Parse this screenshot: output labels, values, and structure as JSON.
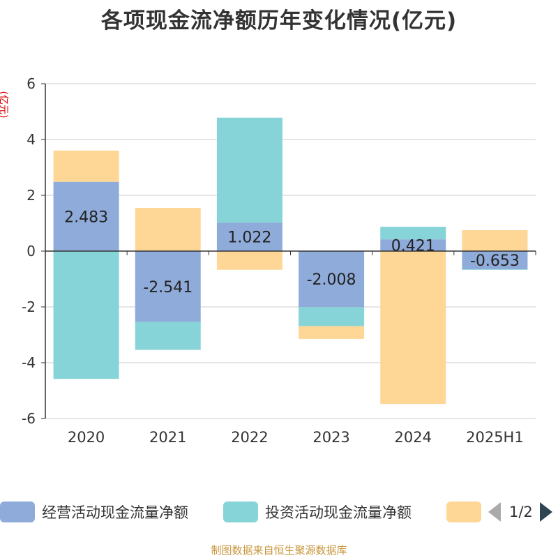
{
  "title": "各项现金流净额历年变化情况(亿元)",
  "y_unit": "(亿元)",
  "colors": {
    "operating": "#8fabda",
    "investing": "#87d4d8",
    "financing": "#fed797",
    "axis": "#333333",
    "grid": "#cccccc"
  },
  "legend": {
    "items": [
      {
        "label": "经营活动现金流量净额"
      },
      {
        "label": "投资活动现金流量净额"
      },
      {
        "label": ""
      }
    ],
    "page_text": "1/2"
  },
  "source": "制图数据来自恒生聚源数据库",
  "chart_data": {
    "type": "bar",
    "stacked": true,
    "categories": [
      "2020",
      "2021",
      "2022",
      "2023",
      "2024",
      "2025H1"
    ],
    "ylim": [
      -6,
      6
    ],
    "yticks": [
      -6,
      -4,
      -2,
      0,
      2,
      4,
      6
    ],
    "grid": true,
    "legend_position": "bottom",
    "series": [
      {
        "name": "经营活动现金流量净额",
        "values": [
          2.483,
          -2.541,
          1.022,
          -2.008,
          0.421,
          -0.653
        ],
        "labels": [
          "2.483",
          "-2.541",
          "1.022",
          "-2.008",
          "0.421",
          "-0.653"
        ]
      },
      {
        "name": "投资活动现金流量净额",
        "values": [
          -4.58,
          -1.0,
          3.76,
          -0.68,
          0.45,
          -0.02
        ]
      },
      {
        "values": [
          1.12,
          1.55,
          -0.67,
          -0.46,
          -5.48,
          0.75
        ]
      }
    ]
  }
}
